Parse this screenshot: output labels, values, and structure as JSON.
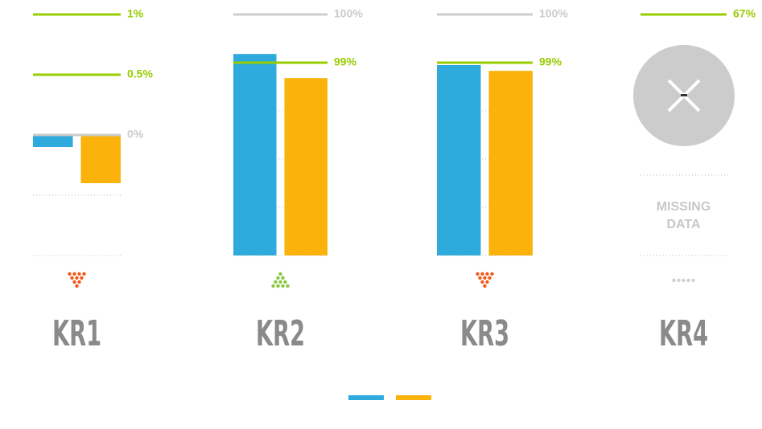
{
  "chart_data": [
    {
      "type": "bar",
      "title": "KR1",
      "ylim": [
        -1,
        1
      ],
      "ygrid": [
        -0.5,
        -1
      ],
      "reference_lines": [
        {
          "value": 1,
          "label": "1%",
          "color": "#99cc00"
        },
        {
          "value": 0.5,
          "label": "0.5%",
          "color": "#99cc00"
        },
        {
          "value": 0,
          "label": "0%",
          "color": "#cccccc"
        }
      ],
      "series": [
        {
          "color": "#2eaadc",
          "values": [
            -0.1
          ]
        },
        {
          "color": "#fbb20b",
          "values": [
            -0.4
          ]
        }
      ]
    },
    {
      "type": "bar",
      "title": "KR2",
      "ylim": [
        95,
        100
      ],
      "ygrid": [
        98,
        97,
        96,
        95
      ],
      "reference_lines": [
        {
          "value": 100,
          "label": "100%",
          "color": "#cccccc"
        },
        {
          "value": 99,
          "label": "99%",
          "color": "#99cc00"
        }
      ],
      "series": [
        {
          "color": "#2eaadc",
          "values": [
            99.18
          ]
        },
        {
          "color": "#fbb20b",
          "values": [
            98.68
          ]
        }
      ]
    },
    {
      "type": "bar",
      "title": "KR3",
      "ylim": [
        95,
        100
      ],
      "ygrid": [
        98,
        97,
        96,
        95
      ],
      "reference_lines": [
        {
          "value": 100,
          "label": "100%",
          "color": "#cccccc"
        },
        {
          "value": 99,
          "label": "99%",
          "color": "#99cc00"
        }
      ],
      "series": [
        {
          "color": "#2eaadc",
          "values": [
            98.95
          ]
        },
        {
          "color": "#fbb20b",
          "values": [
            98.83
          ]
        }
      ]
    },
    {
      "type": "missing",
      "title": "KR4",
      "note": "MISSING DATA",
      "reference_lines": [
        {
          "value": 67,
          "label": "67%",
          "color": "#99cc00"
        }
      ]
    }
  ],
  "legend": [
    {
      "color": "#2eaadc"
    },
    {
      "color": "#fbb20b"
    }
  ]
}
